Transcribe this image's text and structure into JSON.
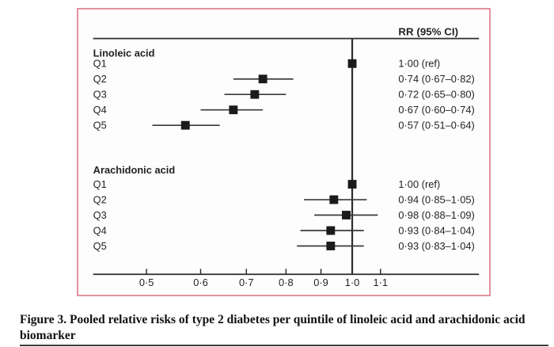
{
  "figure": {
    "caption_line1": "Figure 3. Pooled relative risks of type 2 diabetes per quintile of linoleic acid and arachidonic acid",
    "caption_line2": "biomarker"
  },
  "chart_data": {
    "type": "forest",
    "column_header": "RR (95% CI)",
    "x_scale": "log",
    "x_ticks": [
      0.5,
      0.6,
      0.7,
      0.8,
      0.9,
      1.0,
      1.1
    ],
    "x_tick_labels": [
      "0·5",
      "0·6",
      "0·7",
      "0·8",
      "0·9",
      "1·0",
      "1·1"
    ],
    "x_range": [
      0.45,
      1.2
    ],
    "reference_line": 1.0,
    "grid": false,
    "groups": [
      {
        "label": "Linoleic acid",
        "rows": [
          {
            "label": "Q1",
            "rr": 1.0,
            "ci_low": null,
            "ci_high": null,
            "rr_text": "1·00 (ref)"
          },
          {
            "label": "Q2",
            "rr": 0.74,
            "ci_low": 0.67,
            "ci_high": 0.82,
            "rr_text": "0·74 (0·67–0·82)"
          },
          {
            "label": "Q3",
            "rr": 0.72,
            "ci_low": 0.65,
            "ci_high": 0.8,
            "rr_text": "0·72 (0·65–0·80)"
          },
          {
            "label": "Q4",
            "rr": 0.67,
            "ci_low": 0.6,
            "ci_high": 0.74,
            "rr_text": "0·67 (0·60–0·74)"
          },
          {
            "label": "Q5",
            "rr": 0.57,
            "ci_low": 0.51,
            "ci_high": 0.64,
            "rr_text": "0·57 (0·51–0·64)"
          }
        ]
      },
      {
        "label": "Arachidonic acid",
        "rows": [
          {
            "label": "Q1",
            "rr": 1.0,
            "ci_low": null,
            "ci_high": null,
            "rr_text": "1·00 (ref)"
          },
          {
            "label": "Q2",
            "rr": 0.94,
            "ci_low": 0.85,
            "ci_high": 1.05,
            "rr_text": "0·94 (0·85–1·05)"
          },
          {
            "label": "Q3",
            "rr": 0.98,
            "ci_low": 0.88,
            "ci_high": 1.09,
            "rr_text": "0·98 (0·88–1·09)"
          },
          {
            "label": "Q4",
            "rr": 0.93,
            "ci_low": 0.84,
            "ci_high": 1.04,
            "rr_text": "0·93 (0·84–1·04)"
          },
          {
            "label": "Q5",
            "rr": 0.93,
            "ci_low": 0.83,
            "ci_high": 1.04,
            "rr_text": "0·93 (0·83–1·04)"
          }
        ]
      }
    ],
    "colors": {
      "frame_border": "#e2939e",
      "marker": "#1b1b1b",
      "line": "#2d2d2d",
      "ci_line": "#3a3a3a",
      "text": "#231f20"
    }
  }
}
